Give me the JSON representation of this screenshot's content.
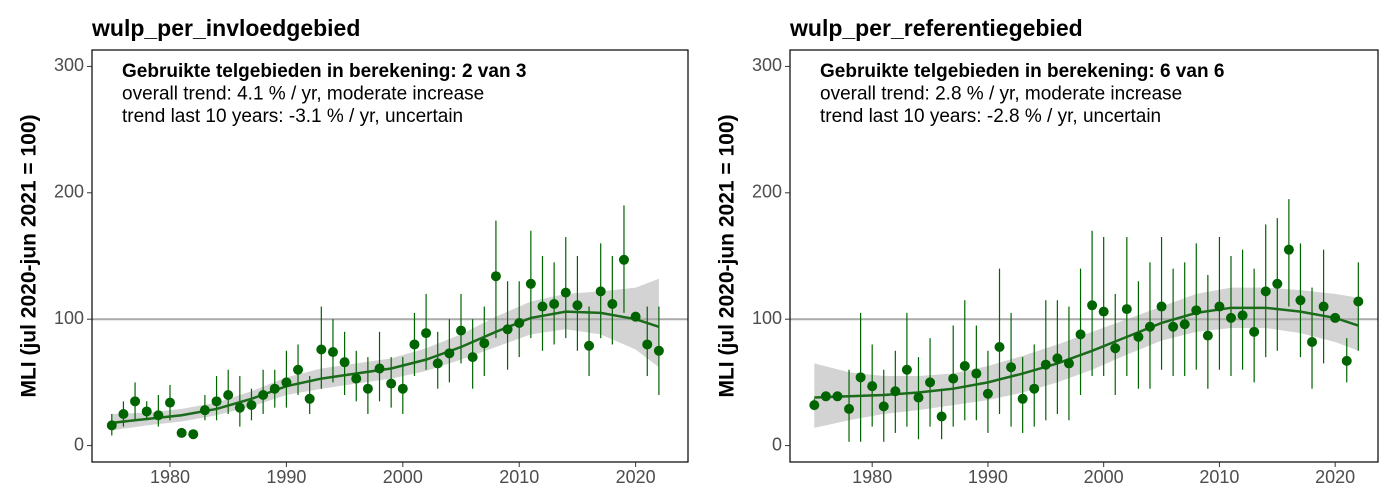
{
  "chart_data": [
    {
      "type": "trend",
      "title": "wulp_per_invloedgebied",
      "y_label": "MLI (jul 2020-jun 2021 = 100)",
      "annotations": [
        "Gebruikte telgebieden in berekening: 2 van 3",
        "overall trend: 4.1 % / yr, moderate increase",
        "trend last 10 years: -3.1 % / yr, uncertain"
      ],
      "xlim": [
        1973.3,
        2024.5
      ],
      "ylim": [
        -13,
        313
      ],
      "xticks": [
        1980,
        1990,
        2000,
        2010,
        2020
      ],
      "yticks": [
        0,
        100,
        200,
        300
      ],
      "reference_line": 100,
      "point_color": "#006400",
      "trend_color": "#1a6b1a",
      "band_color": "#d3d3d3",
      "points": {
        "x": [
          1975,
          1976,
          1977,
          1978,
          1979,
          1980,
          1981,
          1982,
          1983,
          1984,
          1985,
          1986,
          1987,
          1988,
          1989,
          1990,
          1991,
          1992,
          1993,
          1994,
          1995,
          1996,
          1997,
          1998,
          1999,
          2000,
          2001,
          2002,
          2003,
          2004,
          2005,
          2006,
          2007,
          2008,
          2009,
          2010,
          2011,
          2012,
          2013,
          2014,
          2015,
          2016,
          2017,
          2018,
          2019,
          2020,
          2021,
          2022
        ],
        "values": [
          16,
          25,
          35,
          27,
          24,
          34,
          10,
          9,
          28,
          35,
          40,
          30,
          32,
          40,
          45,
          50,
          60,
          37,
          76,
          74,
          66,
          53,
          45,
          61,
          49,
          45,
          80,
          89,
          65,
          73,
          91,
          70,
          81,
          134,
          92,
          97,
          128,
          110,
          112,
          121,
          111,
          79,
          122,
          112,
          147,
          102,
          80,
          75
        ],
        "lower": [
          8,
          15,
          20,
          20,
          15,
          20,
          null,
          null,
          20,
          20,
          25,
          15,
          20,
          25,
          30,
          30,
          40,
          25,
          45,
          50,
          40,
          35,
          25,
          35,
          30,
          25,
          55,
          60,
          45,
          50,
          65,
          45,
          55,
          85,
          60,
          70,
          85,
          75,
          80,
          85,
          75,
          55,
          85,
          80,
          105,
          null,
          55,
          40
        ],
        "upper": [
          25,
          35,
          50,
          35,
          40,
          48,
          null,
          null,
          40,
          55,
          60,
          55,
          45,
          60,
          60,
          75,
          80,
          55,
          110,
          100,
          90,
          75,
          70,
          90,
          70,
          70,
          105,
          120,
          90,
          100,
          120,
          100,
          110,
          178,
          130,
          130,
          170,
          150,
          145,
          165,
          150,
          110,
          160,
          150,
          190,
          null,
          110,
          110
        ]
      },
      "trend": {
        "x": [
          1975,
          1978,
          1981,
          1984,
          1987,
          1990,
          1993,
          1996,
          1999,
          2002,
          2005,
          2008,
          2011,
          2014,
          2017,
          2020,
          2022
        ],
        "values": [
          18,
          21,
          24,
          29,
          37,
          47,
          53,
          57,
          61,
          68,
          78,
          90,
          101,
          106,
          105,
          100,
          94
        ],
        "lower": [
          12,
          16,
          19,
          24,
          31,
          40,
          45,
          49,
          53,
          59,
          68,
          78,
          88,
          92,
          88,
          76,
          62
        ],
        "upper": [
          25,
          26,
          29,
          34,
          43,
          54,
          61,
          65,
          69,
          77,
          88,
          102,
          114,
          120,
          122,
          125,
          132
        ]
      }
    },
    {
      "type": "trend",
      "title": "wulp_per_referentiegebied",
      "y_label": "MLI (jul 2020-jun 2021 = 100)",
      "annotations": [
        "Gebruikte telgebieden in berekening: 6 van 6",
        "overall trend: 2.8 % / yr, moderate increase",
        "trend last 10 years: -2.8 % / yr, uncertain"
      ],
      "xlim": [
        1972.9,
        2023.7
      ],
      "ylim": [
        -13,
        313
      ],
      "xticks": [
        1980,
        1990,
        2000,
        2010,
        2020
      ],
      "yticks": [
        0,
        100,
        200,
        300
      ],
      "reference_line": 100,
      "point_color": "#006400",
      "trend_color": "#1a6b1a",
      "band_color": "#d3d3d3",
      "points": {
        "x": [
          1975,
          1976,
          1977,
          1978,
          1979,
          1980,
          1981,
          1982,
          1983,
          1984,
          1985,
          1986,
          1987,
          1988,
          1989,
          1990,
          1991,
          1992,
          1993,
          1994,
          1995,
          1996,
          1997,
          1998,
          1999,
          2000,
          2001,
          2002,
          2003,
          2004,
          2005,
          2006,
          2007,
          2008,
          2009,
          2010,
          2011,
          2012,
          2013,
          2014,
          2015,
          2016,
          2017,
          2018,
          2019,
          2020,
          2021,
          2022
        ],
        "values": [
          32,
          39,
          39,
          29,
          54,
          47,
          31,
          43,
          60,
          38,
          50,
          23,
          53,
          63,
          57,
          41,
          78,
          62,
          37,
          45,
          64,
          69,
          65,
          88,
          111,
          106,
          77,
          108,
          86,
          94,
          110,
          94,
          96,
          107,
          87,
          110,
          101,
          103,
          90,
          122,
          128,
          155,
          115,
          82,
          110,
          101,
          67,
          114
        ],
        "lower": [
          28,
          null,
          null,
          3,
          3,
          15,
          3,
          10,
          15,
          5,
          15,
          5,
          15,
          20,
          20,
          10,
          25,
          15,
          10,
          15,
          20,
          25,
          20,
          40,
          55,
          55,
          40,
          55,
          45,
          45,
          60,
          55,
          55,
          60,
          45,
          60,
          55,
          60,
          50,
          70,
          75,
          110,
          70,
          45,
          65,
          null,
          50,
          75
        ],
        "upper": [
          37,
          null,
          null,
          60,
          105,
          80,
          60,
          75,
          105,
          70,
          85,
          45,
          95,
          115,
          95,
          75,
          140,
          105,
          70,
          80,
          115,
          115,
          110,
          140,
          170,
          165,
          120,
          165,
          130,
          145,
          165,
          140,
          145,
          160,
          135,
          165,
          150,
          155,
          140,
          175,
          180,
          195,
          160,
          125,
          155,
          null,
          85,
          145
        ]
      },
      "trend": {
        "x": [
          1975,
          1978,
          1981,
          1984,
          1987,
          1990,
          1993,
          1996,
          1999,
          2002,
          2005,
          2008,
          2011,
          2014,
          2017,
          2020,
          2022
        ],
        "values": [
          38,
          39,
          40,
          42,
          45,
          50,
          57,
          65,
          75,
          86,
          97,
          105,
          109,
          109,
          106,
          101,
          95
        ],
        "lower": [
          14,
          20,
          25,
          28,
          32,
          36,
          42,
          50,
          60,
          72,
          83,
          90,
          93,
          93,
          89,
          82,
          75
        ],
        "upper": [
          65,
          58,
          55,
          55,
          57,
          63,
          71,
          80,
          90,
          100,
          110,
          120,
          125,
          125,
          123,
          120,
          117
        ]
      }
    }
  ]
}
